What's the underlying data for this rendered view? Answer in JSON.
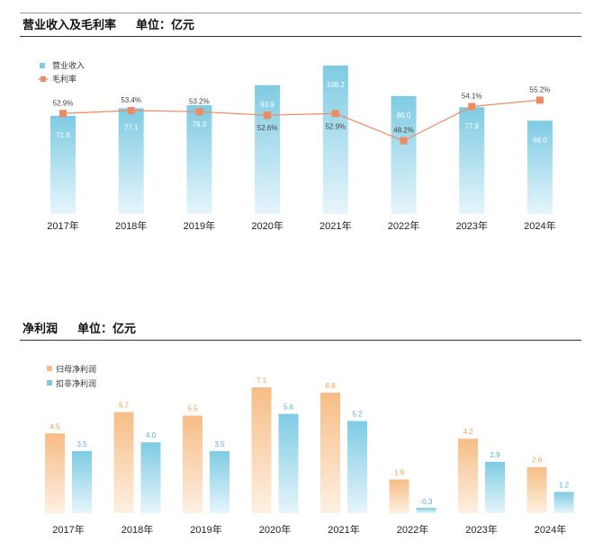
{
  "panels": {
    "revenue": {
      "title": "营业收入及毛利率",
      "unit": "单位：亿元"
    },
    "profit": {
      "title": "净利润",
      "unit": "单位：亿元"
    }
  },
  "colors": {
    "bar_blue_top": "#7ecbe3",
    "bar_blue_bottom": "#e6f5fb",
    "bar_orange_top": "#f7bd86",
    "bar_orange_bottom": "#fdf0e2",
    "line_orange": "#ef8a63",
    "label_blue": "#ffffff",
    "label_orange": "#f0a050"
  },
  "chart_data": [
    {
      "type": "bar",
      "categories": [
        "2017年",
        "2018年",
        "2019年",
        "2020年",
        "2021年",
        "2022年",
        "2023年",
        "2024年"
      ],
      "series": [
        {
          "name": "营业收入",
          "kind": "bar",
          "values": [
            71.6,
            77.1,
            79.3,
            93.9,
            108.2,
            86.0,
            77.9,
            68.0
          ]
        },
        {
          "name": "毛利率",
          "kind": "line",
          "values": [
            52.9,
            53.4,
            53.2,
            52.6,
            52.9,
            48.2,
            54.1,
            55.2
          ],
          "suffix": "%"
        }
      ],
      "legend": "top-left",
      "grid": false
    },
    {
      "type": "bar",
      "categories": [
        "2017年",
        "2018年",
        "2019年",
        "2020年",
        "2021年",
        "2022年",
        "2023年",
        "2024年"
      ],
      "series": [
        {
          "name": "归母净利润",
          "values": [
            4.5,
            5.7,
            5.5,
            7.1,
            6.8,
            1.9,
            4.2,
            2.6
          ]
        },
        {
          "name": "扣非净利润",
          "values": [
            3.5,
            4.0,
            3.5,
            5.6,
            5.2,
            -0.3,
            2.9,
            1.2
          ]
        }
      ],
      "legend": "top-left",
      "grid": false
    }
  ]
}
